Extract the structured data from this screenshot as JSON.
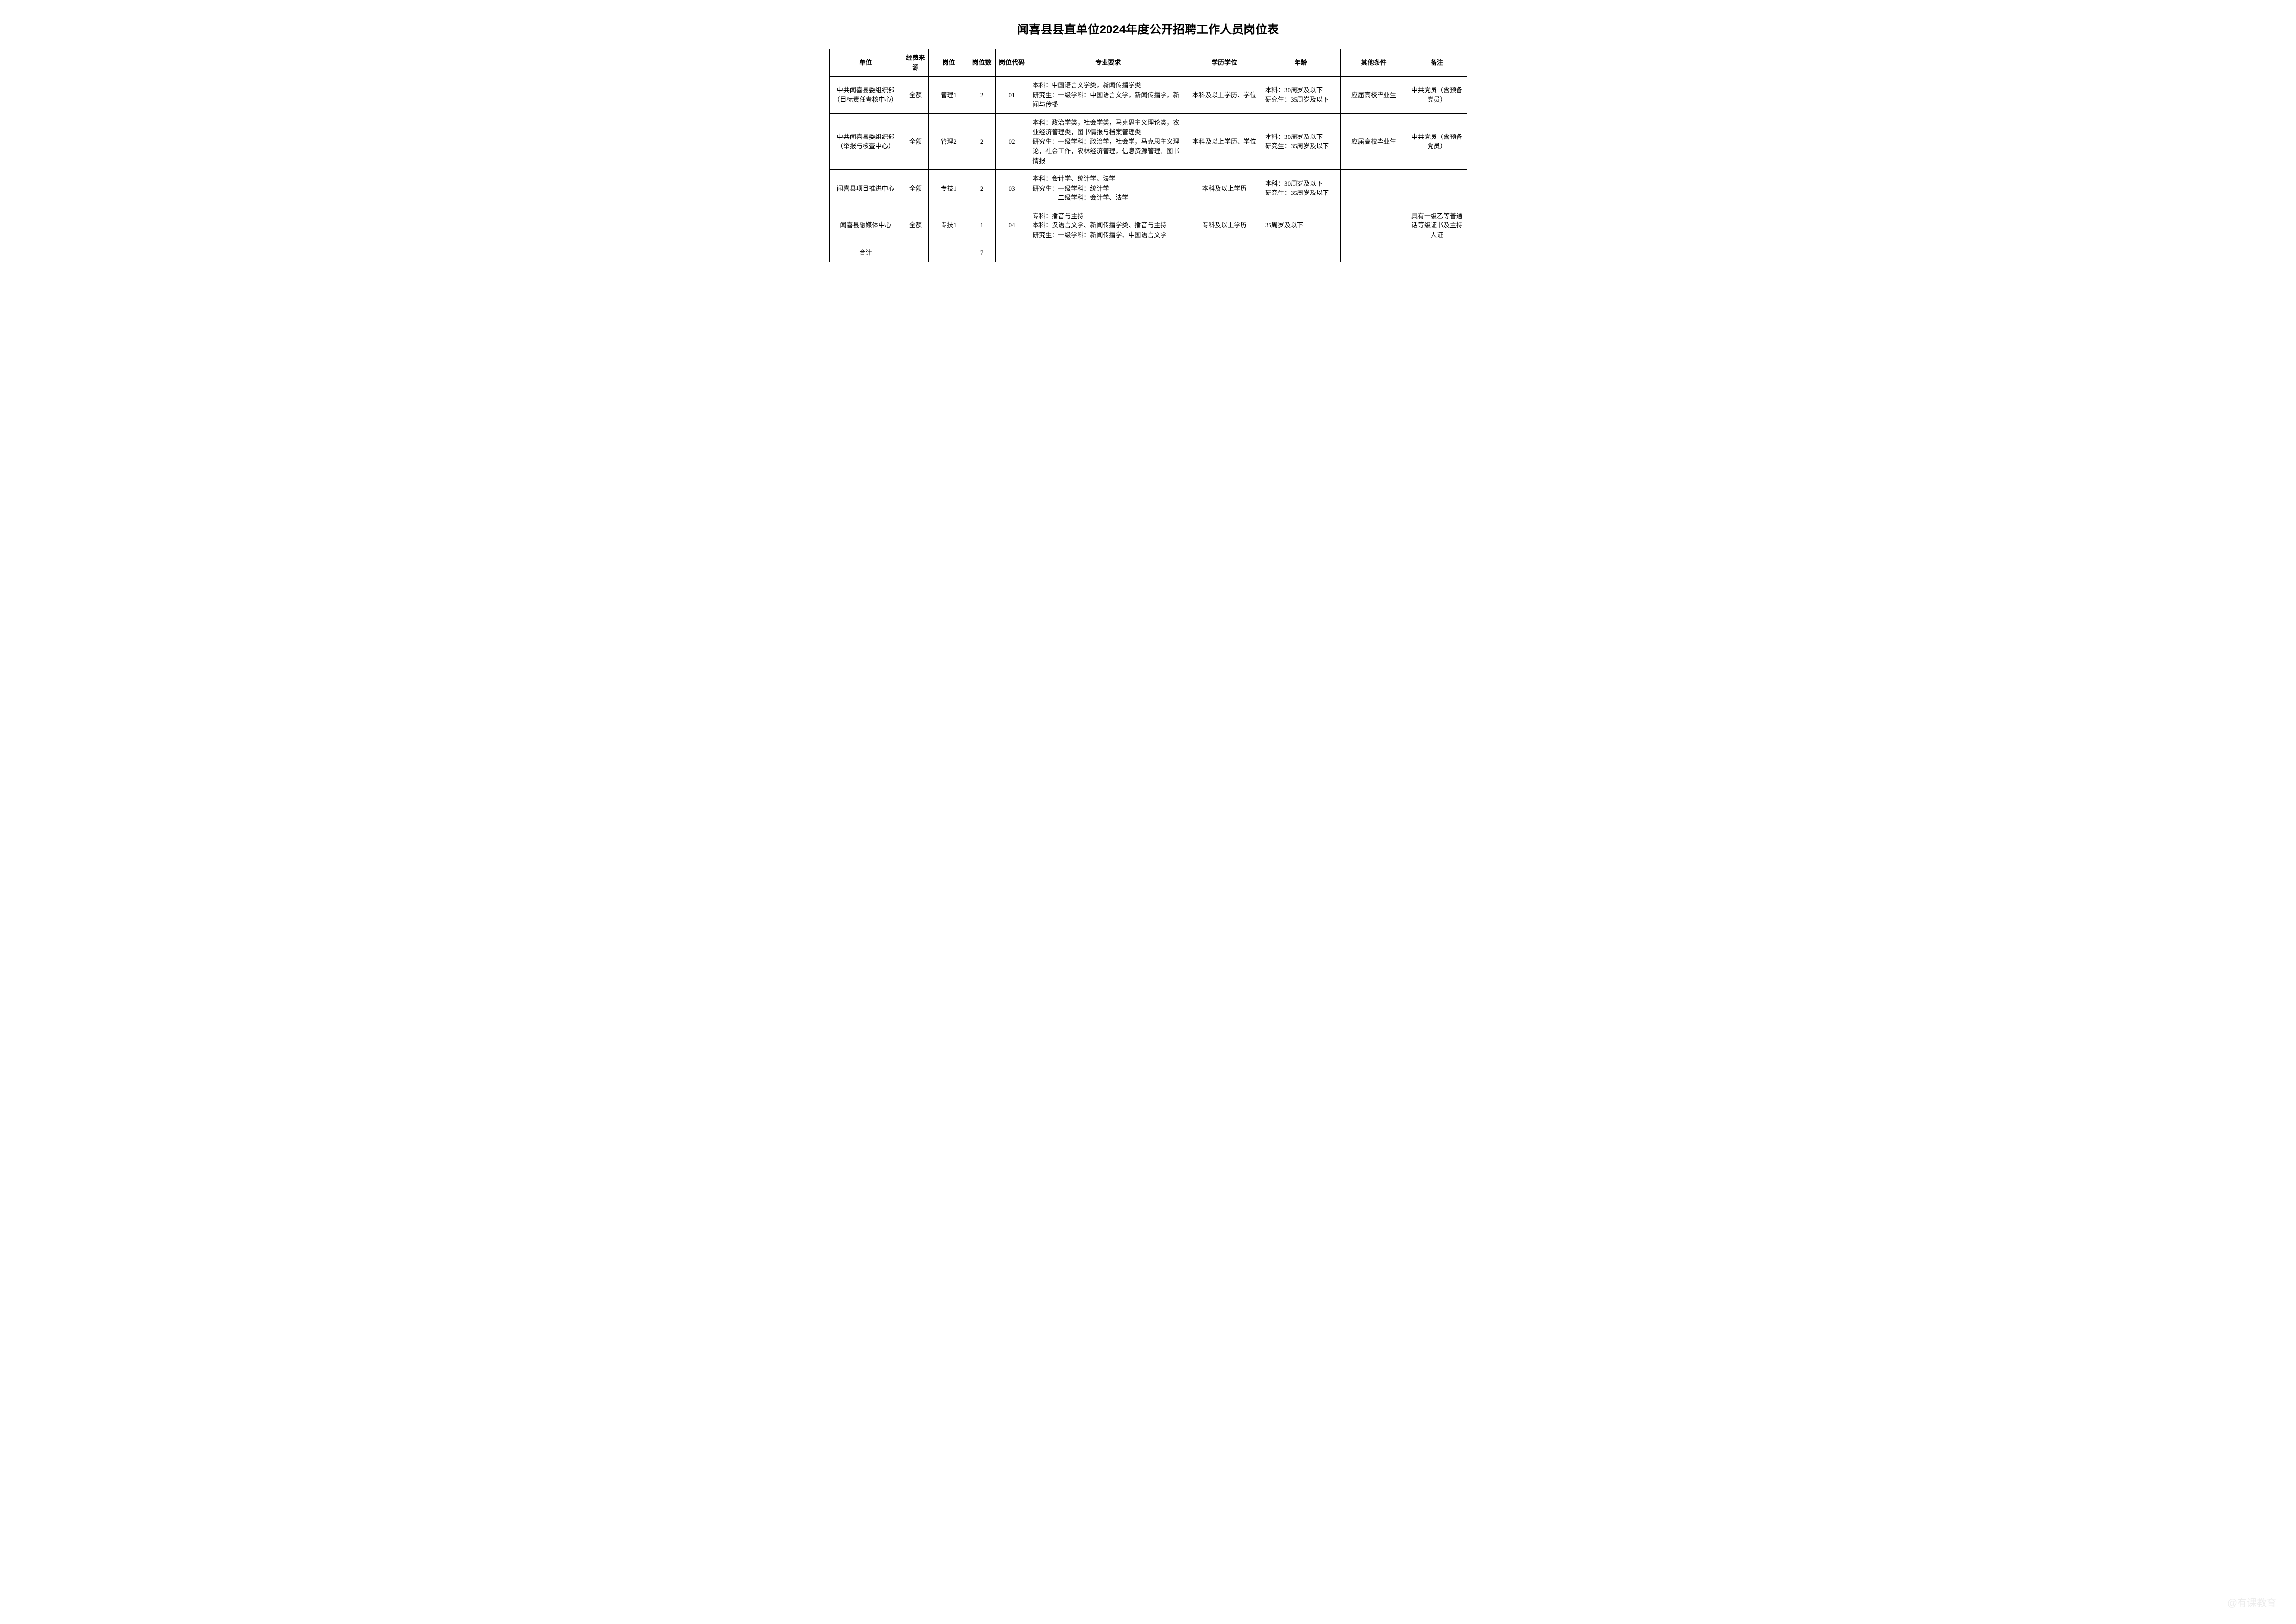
{
  "title": "闻喜县县直单位2024年度公开招聘工作人员岗位表",
  "headers": {
    "unit": "单位",
    "fund": "经费来源",
    "post": "岗位",
    "count": "岗位数",
    "code": "岗位代码",
    "major": "专业要求",
    "edu": "学历学位",
    "age": "年龄",
    "other": "其他条件",
    "note": "备注"
  },
  "rows": [
    {
      "unit": "中共闻喜县委组织部（目标责任考核中心）",
      "fund": "全额",
      "post": "管理1",
      "count": "2",
      "code": "01",
      "major": "本科：中国语言文学类，新闻传播学类\n研究生：一级学科：中国语言文学，新闻传播学，新闻与传播",
      "edu": "本科及以上学历、学位",
      "age": "本科：30周岁及以下\n研究生：35周岁及以下",
      "other": "应届高校毕业生",
      "note": "中共党员（含预备党员）"
    },
    {
      "unit": "中共闻喜县委组织部（举报与核查中心）",
      "fund": "全额",
      "post": "管理2",
      "count": "2",
      "code": "02",
      "major": "本科：政治学类，社会学类，马克思主义理论类，农业经济管理类，图书情报与档案管理类\n研究生：一级学科：政治学，社会学，马克思主义理论，社会工作，农林经济管理，信息资源管理，图书情报",
      "edu": "本科及以上学历、学位",
      "age": "本科：30周岁及以下\n研究生：35周岁及以下",
      "other": "应届高校毕业生",
      "note": "中共党员（含预备党员）"
    },
    {
      "unit": "闻喜县项目推进中心",
      "fund": "全额",
      "post": "专技1",
      "count": "2",
      "code": "03",
      "major": "本科：会计学、统计学、法学\n研究生：一级学科：统计学\n　　　　二级学科：会计学、法学",
      "edu": "本科及以上学历",
      "age": "本科：30周岁及以下\n研究生：35周岁及以下",
      "other": "",
      "note": ""
    },
    {
      "unit": "闻喜县融媒体中心",
      "fund": "全额",
      "post": "专技1",
      "count": "1",
      "code": "04",
      "major": "专科：播音与主持\n本科：汉语言文学、新闻传播学类、播音与主持\n研究生：一级学科：新闻传播学、中国语言文学",
      "edu": "专科及以上学历",
      "age": "35周岁及以下",
      "other": "",
      "note": "具有一级乙等普通话等级证书及主持人证"
    }
  ],
  "totalRow": {
    "label": "合计",
    "count": "7"
  },
  "watermark": "@有课教育",
  "style": {
    "background": "#ffffff",
    "text_color": "#000000",
    "border_color": "#000000",
    "title_fontsize": 24,
    "cell_fontsize": 13,
    "watermark_color": "#dcdcdc"
  }
}
